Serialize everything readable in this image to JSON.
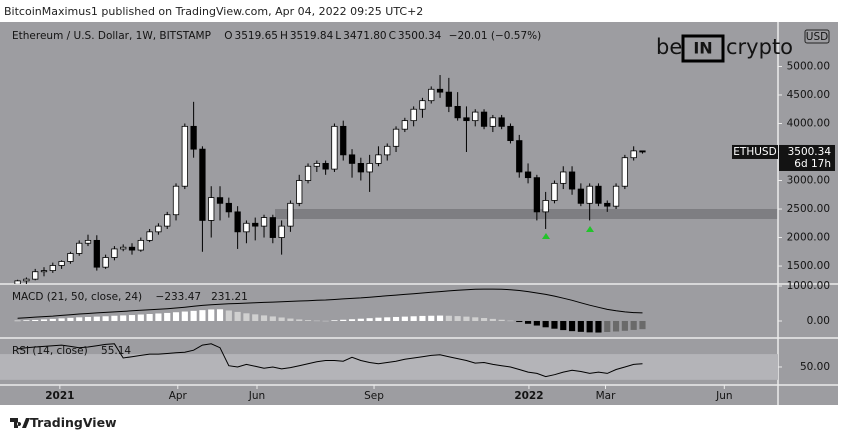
{
  "header": "BitcoinMaximus1 published on TradingView.com, Apr 04, 2022 09:25 UTC+2",
  "footer_brand": "TradingView",
  "watermark": [
    "be",
    "IN",
    "crypto"
  ],
  "chart_data": {
    "type": "candlestick",
    "title": "Ethereum / U.S. Dollar, 1W, BITSTAMP",
    "ohlc_labels": [
      "O",
      "H",
      "L",
      "C"
    ],
    "ohlc_readout": [
      3519.65,
      3519.84,
      {
        "value": 3471.8,
        "label": "3471.80"
      },
      3500.34
    ],
    "change_label": "−20.01 (−0.57%)",
    "symbol": "ETHUSD",
    "currency": "USD",
    "countdown": "6d 17h",
    "up_color": "#ffffff",
    "down_color": "#000000",
    "x": [
      0,
      1,
      2,
      3,
      4,
      5,
      6,
      7,
      8,
      9,
      10,
      11,
      12,
      13,
      14,
      15,
      16,
      17,
      18,
      19,
      20,
      21,
      22,
      23,
      24,
      25,
      26,
      27,
      28,
      29,
      30,
      31,
      32,
      33,
      34,
      35,
      36,
      37,
      38,
      39,
      40,
      41,
      42,
      43,
      44,
      45,
      46,
      47,
      48,
      49,
      50,
      51,
      52,
      53,
      54,
      55,
      56,
      57,
      58,
      59,
      60,
      61,
      62,
      63,
      64,
      65,
      66,
      67,
      68,
      69,
      70,
      71
    ],
    "open": [
      1180,
      1240,
      1270,
      1400,
      1420,
      1510,
      1580,
      1720,
      1900,
      1950,
      1480,
      1650,
      1800,
      1830,
      1780,
      1950,
      2100,
      2200,
      2400,
      2900,
      3950,
      3550,
      2300,
      2700,
      2600,
      2450,
      2100,
      2250,
      2200,
      2350,
      2000,
      2200,
      2600,
      3000,
      3250,
      3300,
      3200,
      3950,
      3450,
      3300,
      3150,
      3300,
      3450,
      3600,
      3900,
      4050,
      4250,
      4400,
      4600,
      4550,
      4300,
      4100,
      4050,
      4200,
      3950,
      4100,
      3950,
      3700,
      3150,
      3050,
      2450,
      2650,
      2950,
      3150,
      2850,
      2600,
      2900,
      2600,
      2550,
      2900,
      3400,
      3519.65
    ],
    "high": [
      1260,
      1300,
      1450,
      1480,
      1560,
      1600,
      1750,
      1950,
      2050,
      2040,
      1700,
      1850,
      1880,
      1900,
      2000,
      2150,
      2250,
      2450,
      2950,
      4000,
      4380,
      3600,
      2900,
      2900,
      2700,
      2550,
      2300,
      2350,
      2400,
      2400,
      2300,
      2650,
      3100,
      3300,
      3350,
      3350,
      4000,
      4050,
      3550,
      3400,
      3450,
      3600,
      3650,
      3950,
      4100,
      4300,
      4450,
      4650,
      4850,
      4800,
      4550,
      4300,
      4250,
      4250,
      4150,
      4150,
      4000,
      3800,
      3300,
      3100,
      2800,
      3000,
      3250,
      3250,
      2950,
      2950,
      2950,
      2650,
      2950,
      3450,
      3600,
      3519.84
    ],
    "low": [
      1150,
      1180,
      1250,
      1320,
      1380,
      1450,
      1540,
      1680,
      1850,
      1420,
      1450,
      1600,
      1760,
      1700,
      1750,
      1920,
      2050,
      2150,
      2300,
      2850,
      3400,
      1750,
      2000,
      2300,
      2350,
      1800,
      1900,
      1950,
      2000,
      1900,
      1700,
      2100,
      2550,
      2950,
      3150,
      3100,
      3150,
      3350,
      3050,
      3000,
      2800,
      3250,
      3350,
      3500,
      3850,
      3950,
      4100,
      4350,
      4450,
      4200,
      4050,
      3500,
      3950,
      3900,
      3850,
      3900,
      3650,
      3050,
      2950,
      2300,
      2150,
      2600,
      2850,
      2750,
      2550,
      2300,
      2550,
      2450,
      2500,
      2850,
      3350,
      3471.8
    ],
    "close": [
      1240,
      1270,
      1400,
      1420,
      1510,
      1580,
      1720,
      1900,
      1950,
      1480,
      1650,
      1800,
      1830,
      1780,
      1950,
      2100,
      2200,
      2400,
      2900,
      3950,
      3550,
      2300,
      2700,
      2600,
      2450,
      2100,
      2250,
      2200,
      2350,
      2000,
      2200,
      2600,
      3000,
      3250,
      3300,
      3200,
      3950,
      3450,
      3300,
      3150,
      3300,
      3450,
      3600,
      3900,
      4050,
      4250,
      4400,
      4600,
      4550,
      4300,
      4100,
      4050,
      4200,
      3950,
      4100,
      3950,
      3700,
      3150,
      3050,
      2450,
      2650,
      2950,
      3150,
      2850,
      2600,
      2900,
      2600,
      2550,
      2900,
      3400,
      3520,
      3500.34
    ],
    "xlim": [
      -2,
      86.4
    ],
    "xticks": [
      {
        "value": 4.8,
        "label": "2021"
      },
      {
        "value": 18.2,
        "label": "Apr"
      },
      {
        "value": 27.2,
        "label": "Jun"
      },
      {
        "value": 40.5,
        "label": "Sep"
      },
      {
        "value": 58.1,
        "label": "2022"
      },
      {
        "value": 66.8,
        "label": "Mar"
      },
      {
        "value": 80.3,
        "label": "Jun"
      }
    ],
    "ylim": [
      1185,
      5780
    ],
    "yticks": [
      {
        "value": 1500,
        "label": "1500.00"
      },
      {
        "value": 2000,
        "label": "2000.00"
      },
      {
        "value": 2500,
        "label": "2500.00"
      },
      {
        "value": 3000,
        "label": "3000.00"
      },
      {
        "value": 3500,
        "label": "3500.00"
      },
      {
        "value": 4000,
        "label": "4000.00"
      },
      {
        "value": 4500,
        "label": "4500.00"
      },
      {
        "value": 5000,
        "label": "5000.00"
      }
    ],
    "macd": {
      "title": "MACD (21, 50, close, 24)",
      "readout": [
        {
          "value": -233.47,
          "label": "−233.47"
        },
        231.21
      ],
      "hist_colors": [
        "#ffffff",
        "#d0d0d0",
        "#000000",
        "#6a6a6a"
      ],
      "line_color": "#000000",
      "histogram": [
        10,
        20,
        30,
        45,
        60,
        75,
        90,
        105,
        115,
        125,
        135,
        150,
        160,
        170,
        185,
        200,
        215,
        230,
        250,
        270,
        290,
        310,
        330,
        335,
        300,
        260,
        220,
        190,
        160,
        130,
        100,
        70,
        45,
        25,
        10,
        5,
        20,
        35,
        50,
        65,
        80,
        95,
        105,
        115,
        125,
        135,
        145,
        150,
        155,
        150,
        140,
        125,
        105,
        85,
        60,
        35,
        10,
        -30,
        -80,
        -130,
        -180,
        -220,
        -260,
        -290,
        -310,
        -325,
        -330,
        -315,
        -300,
        -280,
        -255,
        -233.47
      ],
      "line": [
        80,
        95,
        110,
        125,
        140,
        160,
        180,
        200,
        215,
        230,
        245,
        260,
        275,
        290,
        305,
        320,
        335,
        350,
        370,
        395,
        420,
        445,
        465,
        480,
        490,
        500,
        510,
        520,
        530,
        540,
        550,
        560,
        570,
        580,
        590,
        600,
        615,
        630,
        645,
        660,
        680,
        700,
        720,
        740,
        760,
        780,
        800,
        820,
        840,
        860,
        880,
        895,
        905,
        910,
        910,
        905,
        895,
        870,
        840,
        800,
        760,
        710,
        650,
        590,
        520,
        450,
        390,
        330,
        290,
        260,
        240,
        231.21
      ],
      "ylim": [
        -486,
        1057
      ],
      "yticks": [
        {
          "value": 1000,
          "label": "1000.00"
        },
        {
          "value": 0,
          "label": "0.00"
        }
      ]
    },
    "rsi": {
      "title": "RSI (14, close)",
      "line_color": "#000000",
      "band": [
        30,
        70
      ],
      "band_color": "#b4b4b8",
      "values": [
        78,
        80,
        81,
        82,
        83,
        84,
        82,
        80,
        81,
        83,
        85,
        86,
        64,
        66,
        68,
        70,
        70,
        71,
        72,
        73,
        76,
        84,
        86,
        80,
        52,
        50,
        54,
        51,
        48,
        50,
        47,
        49,
        52,
        55,
        58,
        60,
        60,
        59,
        65,
        60,
        57,
        55,
        57,
        59,
        62,
        64,
        66,
        68,
        69,
        66,
        63,
        60,
        56,
        57,
        54,
        52,
        50,
        46,
        42,
        40,
        35,
        38,
        42,
        45,
        43,
        40,
        42,
        40,
        46,
        50,
        54,
        55.14
      ],
      "ylim": [
        22,
        95
      ],
      "yticks": [
        {
          "value": 50,
          "label": "50.00"
        }
      ]
    }
  }
}
